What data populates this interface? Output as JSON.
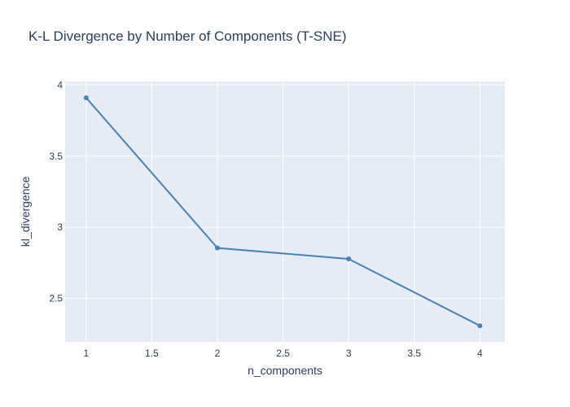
{
  "chart_data": {
    "type": "line",
    "title": "K-L Divergence by Number of Components (T-SNE)",
    "xlabel": "n_components",
    "ylabel": "kl_divergence",
    "x": [
      1,
      2,
      3,
      4
    ],
    "series": [
      {
        "values": [
          3.91,
          2.855,
          2.778,
          2.308
        ]
      }
    ],
    "xlim": [
      0.84,
      4.19
    ],
    "ylim": [
      2.195,
      4.025
    ],
    "xticks": [
      1,
      1.5,
      2,
      2.5,
      3,
      3.5,
      4
    ],
    "xtick_labels": [
      "1",
      "1.5",
      "2",
      "2.5",
      "3",
      "3.5",
      "4"
    ],
    "yticks": [
      2.5,
      3,
      3.5,
      4
    ],
    "ytick_labels": [
      "2.5",
      "3",
      "3.5",
      "4"
    ],
    "grid": true,
    "legend": false,
    "colors": {
      "line": "#4682b4",
      "plot_background": "#e5ecf6",
      "grid": "#ffffff",
      "text": "#2a3f5f"
    }
  }
}
